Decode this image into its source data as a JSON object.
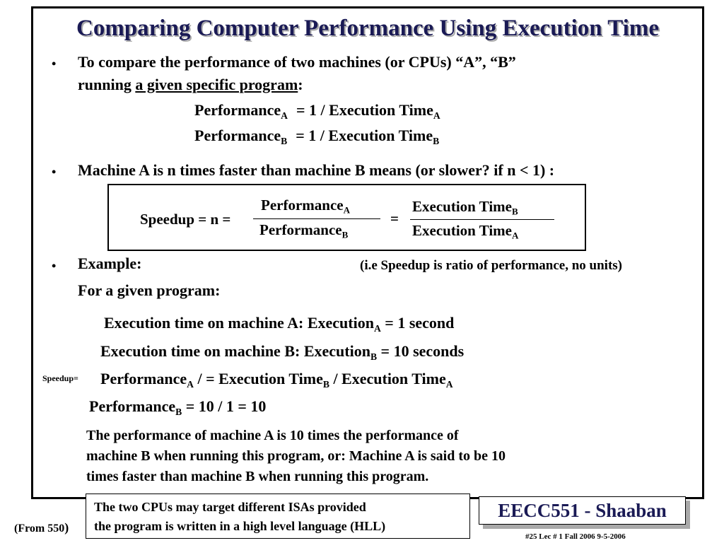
{
  "title": "Comparing Computer Performance Using Execution Time",
  "bullet_glyph": "•",
  "b1": {
    "line1": "To compare the performance of two machines (or CPUs)  “A”, “B”",
    "line2_pre": "running ",
    "line2_u": "a given specific program",
    "line2_post": ":"
  },
  "perfA": {
    "word": "Performance",
    "sub": "A",
    "mid": "=   1  /   Execution Time",
    "sub2": "A"
  },
  "perfB": {
    "word": "Performance",
    "sub": "B",
    "mid": "=   1  /   Execution Time",
    "sub2": "B"
  },
  "b2": "Machine A is  n times faster than machine B means  (or slower? if n < 1) :",
  "speedup_box": {
    "lhs": "Speedup = n =",
    "num1": "Performance",
    "num1_sub": "A",
    "den1": "Performance",
    "den1_sub": "B",
    "eq": "=",
    "num2": "Execution Time",
    "num2_sub": "B",
    "den2": "Execution Time",
    "den2_sub": "A"
  },
  "b3": "Example:",
  "note": "(i.e Speedup is ratio of performance, no units)",
  "given": "For a given program:",
  "execA": {
    "pre": "Execution time on machine A:    Execution",
    "sub": "A",
    "post": " =  1  second"
  },
  "execB": {
    "pre": "Execution time on machine B:   Execution",
    "sub": "B",
    "post": " =  10  seconds"
  },
  "speedup_small": "Speedup=",
  "ratio": {
    "p1": "Performance",
    "s1": "A",
    "p2": " /  =  Execution Time",
    "s2": "B",
    "p3": "  /  Execution Time",
    "s3": "A"
  },
  "perfB_line": {
    "p1": "Performance",
    "s1": "B",
    "p2": " =  10 / 1 = 10"
  },
  "conclusion": [
    "The performance of machine A  is 10 times the performance of",
    "machine B when running this program, or:  Machine A is said to be 10",
    "times faster than machine B when running this program."
  ],
  "footer": {
    "from": "(From 550",
    "from_paren": ")",
    "box_line1": "The two CPUs may target different ISAs  provided",
    "box_line2": "the program is written in a high level language (HLL)",
    "brand": "EECC551 - Shaaban",
    "slide_info": "#25   Lec # 1  Fall 2006   9-5-2006"
  }
}
